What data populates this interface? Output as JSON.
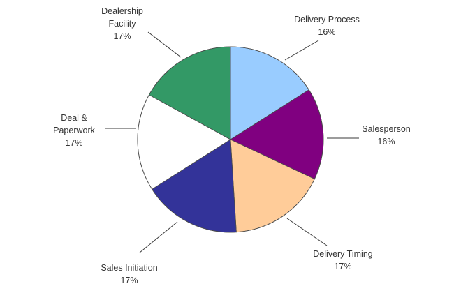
{
  "chart_data": {
    "type": "pie",
    "title": "",
    "slices": [
      {
        "label": "Delivery Process",
        "value": 16,
        "value_label": "16%",
        "color": "#99CCFF"
      },
      {
        "label": "Salesperson",
        "value": 16,
        "value_label": "16%",
        "color": "#800080"
      },
      {
        "label": "Delivery Timing",
        "value": 17,
        "value_label": "17%",
        "color": "#FFCC99"
      },
      {
        "label": "Sales Initiation",
        "value": 17,
        "value_label": "17%",
        "color": "#333399"
      },
      {
        "label": "Deal & Paperwork",
        "value": 17,
        "value_label": "17%",
        "color": "#FFFFFF"
      },
      {
        "label": "Dealership Facility",
        "value": 17,
        "value_label": "17%",
        "color": "#339966"
      }
    ],
    "legend": "none",
    "start": "12 o'clock",
    "direction": "clockwise"
  }
}
